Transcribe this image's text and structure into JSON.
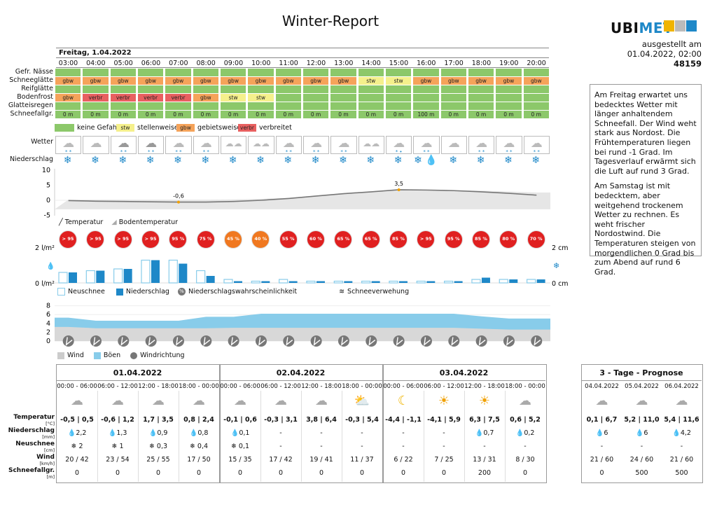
{
  "title": "Winter-Report",
  "logo": {
    "text_a": "UBI",
    "text_b": "MET"
  },
  "issued": {
    "label": "ausgestellt am",
    "datetime": "01.04.2022, 02:00",
    "number": "48159"
  },
  "date_label": "Freitag, 1.04.2022",
  "hours": [
    "03:00",
    "04:00",
    "05:00",
    "06:00",
    "07:00",
    "08:00",
    "09:00",
    "10:00",
    "11:00",
    "12:00",
    "13:00",
    "14:00",
    "15:00",
    "16:00",
    "17:00",
    "18:00",
    "19:00",
    "20:00"
  ],
  "rows": {
    "labels": [
      "Gefr. Nässe",
      "Schneeglätte",
      "Reifglätte",
      "Bodenfrost",
      "Glatteisregen",
      "Schneefallgr."
    ],
    "schneeglaette": [
      "gbw",
      "gbw",
      "gbw",
      "gbw",
      "gbw",
      "gbw",
      "gbw",
      "gbw",
      "gbw",
      "gbw",
      "gbw",
      "stw",
      "stw",
      "gbw",
      "gbw",
      "gbw",
      "gbw",
      "gbw"
    ],
    "bodenfrost": [
      "gbw",
      "verbr",
      "verbr",
      "verbr",
      "verbr",
      "gbw",
      "stw",
      "stw",
      "",
      "",
      "",
      "",
      "",
      "",
      "",
      "",
      "",
      ""
    ],
    "schneefallgrenze": [
      "0 m",
      "0 m",
      "0 m",
      "0 m",
      "0 m",
      "0 m",
      "0 m",
      "0 m",
      "0 m",
      "0 m",
      "0 m",
      "0 m",
      "0 m",
      "100 m",
      "0 m",
      "0 m",
      "0 m",
      "0 m"
    ]
  },
  "legend": {
    "none": "keine Gefahr",
    "stw_code": "stw",
    "stw": "stellenweise",
    "gbw_code": "gbw",
    "gbw": "gebietsweise",
    "verbr_code": "verbr",
    "verbr": "verbreitet"
  },
  "labels": {
    "wetter": "Wetter",
    "niederschlag": "Niederschlag",
    "temperatur": "Temperatur",
    "bodentemperatur": "Bodentemperatur",
    "neuschnee": "Neuschnee",
    "niederschlag_leg": "Niederschlag",
    "nsw": "Niederschlagswahrscheinlichkeit",
    "schneeverwehung": "Schneeverwehung",
    "wind": "Wind",
    "boeen": "Böen",
    "windrichtung": "Windrichtung"
  },
  "weather_icons": [
    "snow-cloud",
    "cloud",
    "snow-heavy",
    "snow-heavy",
    "snow-cloud",
    "snow-cloud",
    "clouds",
    "clouds",
    "snow-cloud",
    "snow-cloud",
    "snow-cloud",
    "clouds",
    "snow-rain",
    "snow-cloud",
    "cloud",
    "snow-cloud",
    "snow-cloud",
    "snow-cloud"
  ],
  "precip_icons": [
    "snow",
    "snow",
    "snow",
    "snow",
    "snow",
    "snow",
    "snow",
    "snow",
    "snow",
    "snow",
    "snow",
    "snow",
    "snow",
    "snow-rain",
    "snow",
    "snow",
    "snow",
    "snow"
  ],
  "colors": {
    "green": "#8cc86a",
    "yellow": "#f5f08c",
    "orange": "#f5a35a",
    "red": "#e86060",
    "prob_red": "#e02020",
    "prob_orange": "#f07820",
    "light_blue": "#88ccea",
    "blue": "#1e88c8",
    "grey_fill": "#e0e0e0"
  },
  "temp_chart": {
    "yticks": [
      "10",
      "5",
      "0",
      "-5"
    ],
    "temperature": [
      -0.1,
      -0.3,
      -0.4,
      -0.5,
      -0.6,
      -0.6,
      -0.4,
      0.0,
      0.6,
      1.4,
      2.2,
      2.8,
      3.5,
      3.4,
      3.2,
      2.8,
      2.3,
      1.7
    ],
    "ground": [
      0.2,
      0.2,
      0.2,
      0.2,
      0.2,
      0.2,
      0.3,
      0.5,
      0.8,
      1.5,
      2.4,
      3.0,
      3.5,
      3.5,
      3.4,
      3.2,
      2.9,
      2.6
    ],
    "label_min": "-0,6",
    "label_max": "3,5"
  },
  "probability": [
    "> 95 %",
    "> 95 %",
    "> 95 %",
    "> 95 %",
    "95 %",
    "75 %",
    "45 %",
    "40 %",
    "55 %",
    "60 %",
    "65 %",
    "65 %",
    "85 %",
    "> 95 %",
    "95 %",
    "85 %",
    "80 %",
    "70 %"
  ],
  "precip_chart": {
    "left_top": "2 l/m²",
    "left_bottom": "0 l/m²",
    "right_top": "2 cm",
    "right_bottom": "0 cm",
    "neuschnee": [
      0.3,
      0.35,
      0.4,
      0.65,
      0.65,
      0.35,
      0.1,
      0.05,
      0.1,
      0.05,
      0.05,
      0.05,
      0.05,
      0.05,
      0.05,
      0.1,
      0.1,
      0.1
    ],
    "niederschlag": [
      0.3,
      0.35,
      0.4,
      0.65,
      0.55,
      0.2,
      0.05,
      0.05,
      0.05,
      0.05,
      0.05,
      0.05,
      0.05,
      0.05,
      0.05,
      0.15,
      0.1,
      0.1
    ]
  },
  "wind_chart": {
    "yticks": [
      "8",
      "6",
      "4",
      "2",
      "0"
    ],
    "wind": [
      3.2,
      2.9,
      2.9,
      2.9,
      2.9,
      2.9,
      3.0,
      3.0,
      3.0,
      3.0,
      3.0,
      3.0,
      3.0,
      3.0,
      3.0,
      2.8,
      2.6,
      2.6
    ],
    "gusts": [
      5.3,
      4.6,
      4.6,
      4.6,
      4.6,
      5.5,
      5.5,
      6.2,
      6.2,
      6.2,
      6.2,
      6.2,
      6.2,
      6.2,
      6.2,
      5.6,
      5.1,
      5.1
    ]
  },
  "forecast": {
    "row_labels": [
      {
        "name": "Temperatur",
        "unit": "[°C]"
      },
      {
        "name": "Niederschlag",
        "unit": "[mm]"
      },
      {
        "name": "Neuschnee",
        "unit": "[cm]"
      },
      {
        "name": "Wind",
        "unit": "[km/h]"
      },
      {
        "name": "Schneefallgr.",
        "unit": "[m]"
      }
    ],
    "periods": [
      "00:00 - 06:00",
      "06:00 - 12:00",
      "12:00 - 18:00",
      "18:00 - 00:00"
    ],
    "days": [
      {
        "date": "01.04.2022",
        "icons": [
          "snow-heavy",
          "snow-heavy",
          "snow-heavy",
          "snow-heavy"
        ],
        "temp": [
          "-0,5 | 0,5",
          "-0,6 | 1,2",
          "1,7 | 3,5",
          "0,8 | 2,4"
        ],
        "precip": [
          "2,2",
          "1,3",
          "0,9",
          "0,8"
        ],
        "snow": [
          "2",
          "1",
          "0,3",
          "0,4"
        ],
        "wind": [
          "20 / 42",
          "23 / 54",
          "25 / 55",
          "17 / 50"
        ],
        "sfg": [
          "0",
          "0",
          "0",
          "0"
        ]
      },
      {
        "date": "02.04.2022",
        "icons": [
          "clouds",
          "clouds",
          "clouds",
          "partly-cloudy"
        ],
        "temp": [
          "-0,1 | 0,6",
          "-0,3 | 3,1",
          "3,8 | 6,4",
          "-0,3 | 5,4"
        ],
        "precip": [
          "0,1",
          "-",
          "-",
          "-"
        ],
        "snow": [
          "0,1",
          "-",
          "-",
          "-"
        ],
        "wind": [
          "15 / 35",
          "17 / 42",
          "19 / 41",
          "11 / 37"
        ],
        "sfg": [
          "0",
          "0",
          "0",
          "0"
        ]
      },
      {
        "date": "03.04.2022",
        "icons": [
          "moon-cloud",
          "sun-cloud",
          "sun-cloud",
          "rain-shower"
        ],
        "temp": [
          "-4,4 | -1,1",
          "-4,1 | 5,9",
          "6,3 | 7,5",
          "0,6 | 5,2"
        ],
        "precip": [
          "-",
          "-",
          "0,7",
          "0,2"
        ],
        "snow": [
          "-",
          "-",
          "-",
          "-"
        ],
        "wind": [
          "6 / 22",
          "7 / 25",
          "13 / 31",
          "8 / 30"
        ],
        "sfg": [
          "0",
          "0",
          "200",
          "0"
        ]
      }
    ],
    "three_day": {
      "title": "3 - Tage - Prognose",
      "dates": [
        "04.04.2022",
        "05.04.2022",
        "06.04.2022"
      ],
      "icons": [
        "rain",
        "rain",
        "cloud-rain"
      ],
      "temp": [
        "0,1 | 6,7",
        "5,2 | 11,0",
        "5,4 | 11,6"
      ],
      "precip": [
        "6",
        "6",
        "4,2"
      ],
      "snow": [
        "-",
        "-",
        "-"
      ],
      "wind": [
        "21 / 60",
        "24 / 60",
        "21 / 60"
      ],
      "sfg": [
        "0",
        "500",
        "500"
      ]
    }
  },
  "text": {
    "p1": "Am Freitag erwartet uns bedecktes Wetter mit länger anhaltendem Schneefall. Der Wind weht stark aus Nordost. Die Frühtemperaturen liegen bei rund -1 Grad. Im Tagesverlauf erwärmt sich die Luft auf rund 3 Grad.",
    "p2": "Am Samstag ist mit bedecktem, aber weitgehend trockenem Wetter zu rechnen. Es weht frischer Nordostwind. Die Temperaturen steigen von morgendlichen 0 Grad bis zum Abend auf rund 6 Grad."
  }
}
